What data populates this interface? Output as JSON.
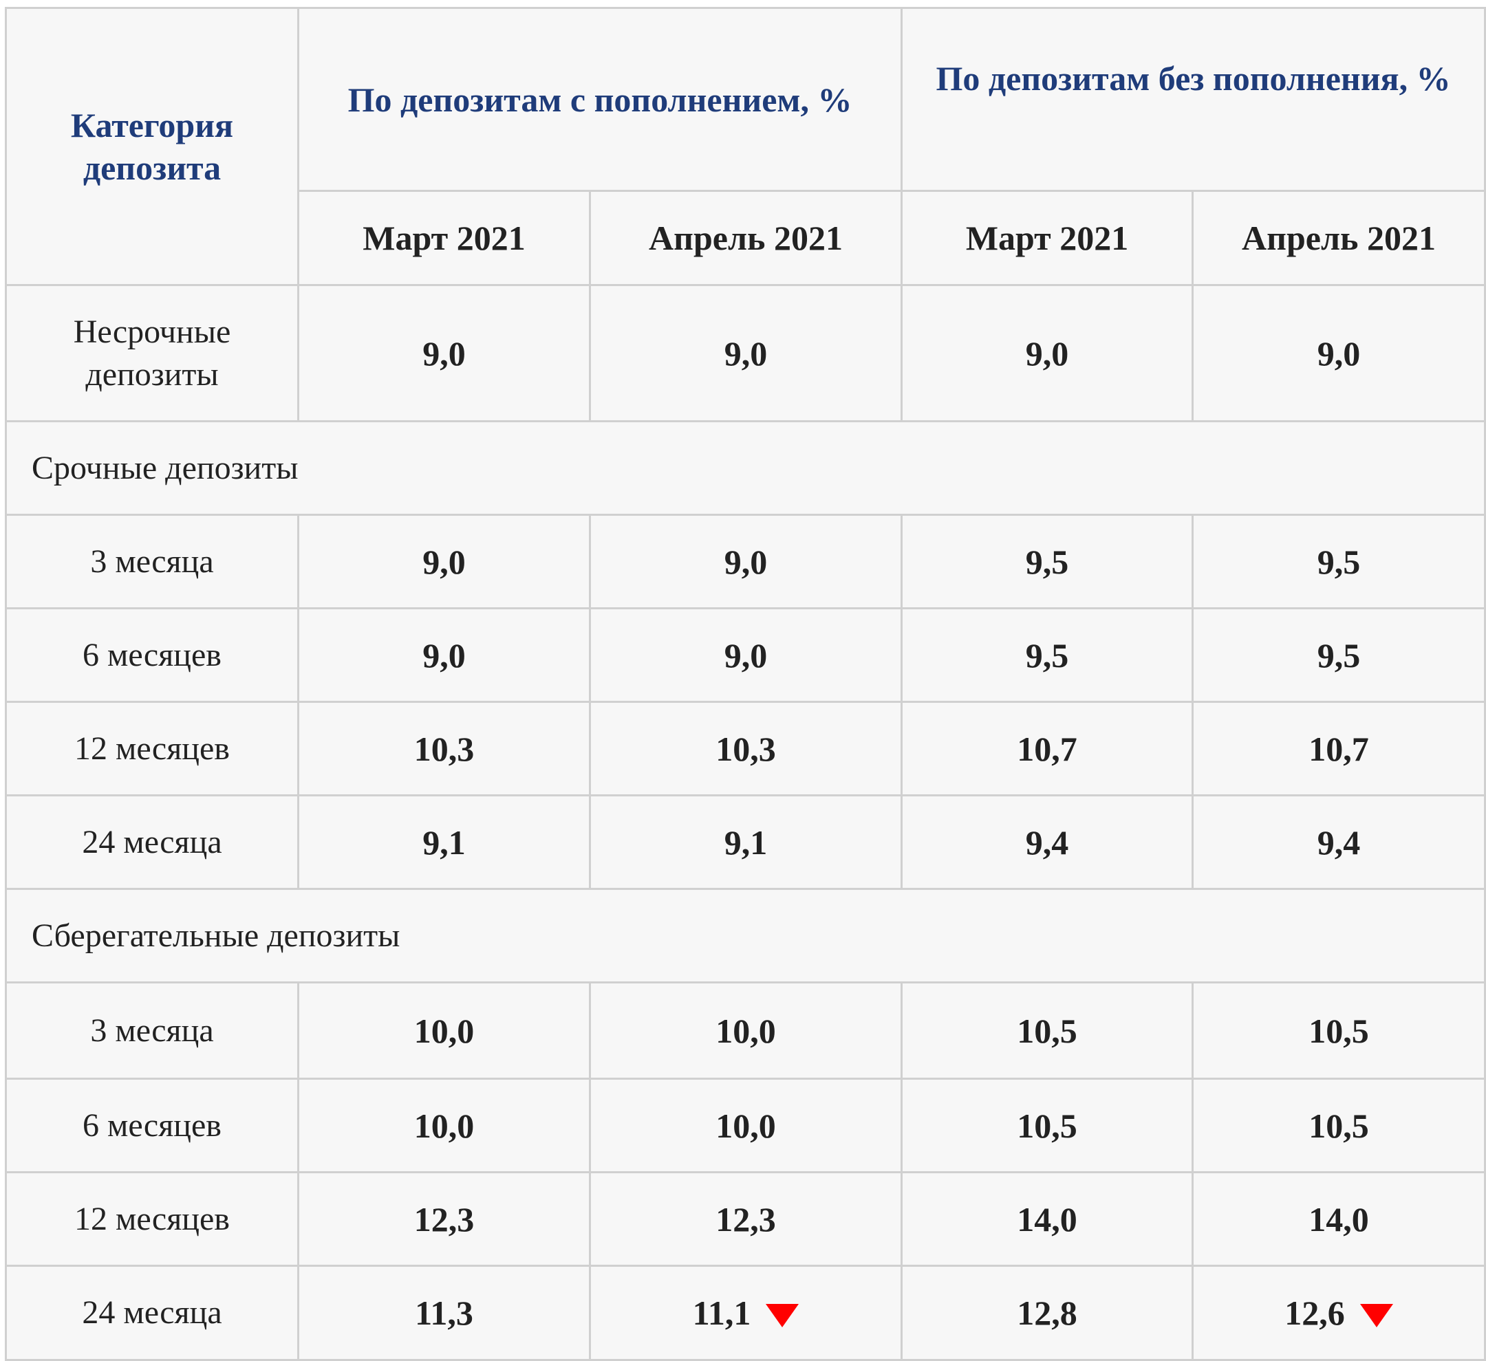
{
  "table": {
    "header": {
      "category": "Категория депозита",
      "group_with_top_up": "По депозитам с пополнением, %",
      "group_without_top_up": "По депозитам без пополнения, %",
      "months": [
        "Март 2021",
        "Апрель 2021",
        "Март 2021",
        "Апрель 2021"
      ]
    },
    "rows": [
      {
        "category": "Несрочные депозиты",
        "values": [
          "9,0",
          "9,0",
          "9,0",
          "9,0"
        ]
      },
      {
        "section": "Срочные депозиты"
      },
      {
        "category": "3 месяца",
        "values": [
          "9,0",
          "9,0",
          "9,5",
          "9,5"
        ]
      },
      {
        "category": "6 месяцев",
        "values": [
          "9,0",
          "9,0",
          "9,5",
          "9,5"
        ]
      },
      {
        "category": "12 месяцев",
        "values": [
          "10,3",
          "10,3",
          "10,7",
          "10,7"
        ]
      },
      {
        "category": "24 месяца",
        "values": [
          "9,1",
          "9,1",
          "9,4",
          "9,4"
        ]
      },
      {
        "section": "Сберегательные депозиты"
      },
      {
        "category": "3 месяца",
        "values": [
          "10,0",
          "10,0",
          "10,5",
          "10,5"
        ]
      },
      {
        "category": "6 месяцев",
        "values": [
          "10,0",
          "10,0",
          "10,5",
          "10,5"
        ]
      },
      {
        "category": "12 месяцев",
        "values": [
          "12,3",
          "12,3",
          "14,0",
          "14,0"
        ]
      },
      {
        "category": "24 месяца",
        "values": [
          "11,3",
          "11,1",
          "12,8",
          "12,6"
        ],
        "decrease_icons": [
          false,
          true,
          false,
          true
        ]
      }
    ],
    "colors": {
      "header_text": "#1f3c7a",
      "decrease_marker": "#ff0000",
      "grid": "#d0d0d0",
      "background": "#f7f7f7"
    },
    "icons": {
      "decrease": "red-down-triangle-icon"
    }
  }
}
